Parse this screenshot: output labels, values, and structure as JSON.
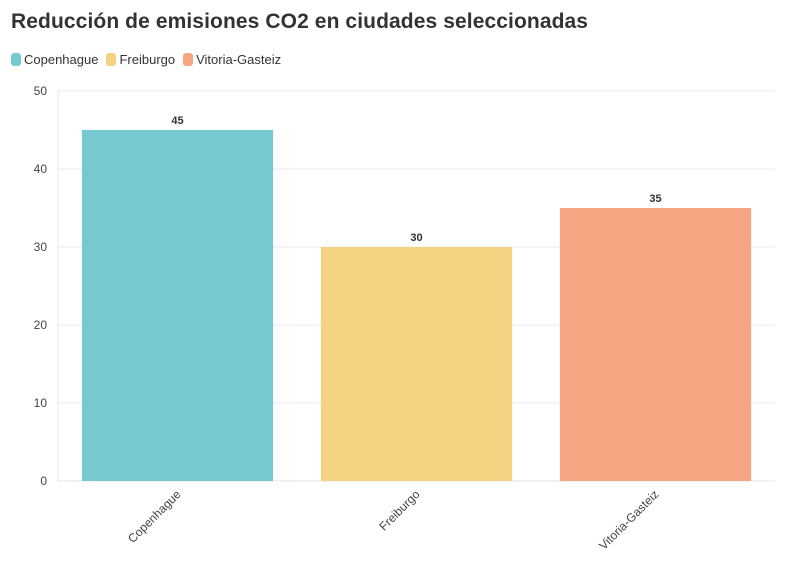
{
  "chart_data": {
    "type": "bar",
    "title": "Reducción de emisiones CO2 en ciudades seleccionadas",
    "categories": [
      "Copenhague",
      "Freiburgo",
      "Vitoria-Gasteiz"
    ],
    "values": [
      45,
      30,
      35
    ],
    "colors": [
      "#76c9d0",
      "#f5d282",
      "#f7a683"
    ],
    "legend": [
      {
        "label": "Copenhague",
        "color": "#76c9d0"
      },
      {
        "label": "Freiburgo",
        "color": "#f5d282"
      },
      {
        "label": "Vitoria-Gasteiz",
        "color": "#f7a683"
      }
    ],
    "ylim": [
      0,
      50
    ],
    "yticks": [
      0,
      10,
      20,
      30,
      40,
      50
    ],
    "grid": true,
    "legend_position": "top-left",
    "xlabel": "",
    "ylabel": ""
  }
}
